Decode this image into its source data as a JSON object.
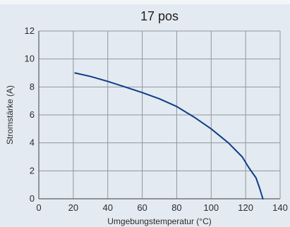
{
  "chart_data": {
    "type": "line",
    "title": "17 pos",
    "xlabel": "Umgebungstemperatur (°C)",
    "ylabel": "Stromstärke (A)",
    "xlim": [
      0,
      140
    ],
    "ylim": [
      0,
      12
    ],
    "xticks": [
      0,
      20,
      40,
      60,
      80,
      100,
      120,
      140
    ],
    "yticks": [
      0,
      2,
      4,
      6,
      8,
      10,
      12
    ],
    "grid": true,
    "colors": {
      "plot_background": "#e4eaf1",
      "grid": "#8f96a0",
      "line": "#0d3f86"
    },
    "series": [
      {
        "x": [
          21,
          30,
          40,
          50,
          60,
          70,
          80,
          90,
          100,
          110,
          118,
          122,
          126,
          128,
          130
        ],
        "values": [
          9.0,
          8.75,
          8.4,
          8.0,
          7.6,
          7.15,
          6.6,
          5.85,
          5.0,
          4.0,
          3.0,
          2.2,
          1.5,
          0.8,
          0.0
        ]
      }
    ]
  }
}
